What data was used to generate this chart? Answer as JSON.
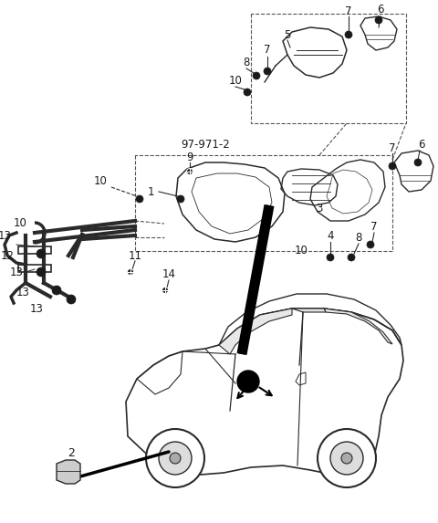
{
  "background_color": "#ffffff",
  "line_color": "#2a2a2a",
  "label_color": "#1a1a1a",
  "dashed_color": "#555555",
  "fig_width": 4.8,
  "fig_height": 5.73,
  "dpi": 100
}
